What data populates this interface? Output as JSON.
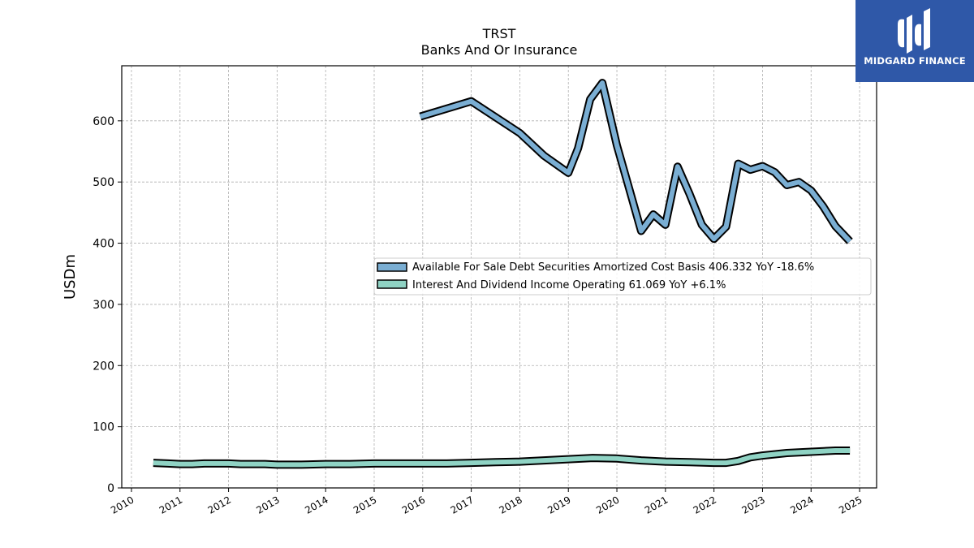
{
  "chart_data": {
    "type": "line",
    "title": "TRST",
    "subtitle": "Banks And Or Insurance",
    "ylabel": "USDm",
    "xlabel": "",
    "xlim": [
      2009.8,
      2025.35
    ],
    "ylim": [
      0,
      690
    ],
    "x_ticks": [
      "2010",
      "2011",
      "2012",
      "2013",
      "2014",
      "2015",
      "2016",
      "2017",
      "2018",
      "2019",
      "2020",
      "2021",
      "2022",
      "2023",
      "2024",
      "2025"
    ],
    "y_ticks": [
      "0",
      "100",
      "200",
      "300",
      "400",
      "500",
      "600"
    ],
    "grid": true,
    "legend_position": "center-right",
    "series": [
      {
        "name": "Available For Sale Debt Securities Amortized Cost Basis",
        "legend_label": "Available For Sale Debt Securities Amortized Cost Basis  406.332 YoY -18.6%",
        "color": "#7aaed3",
        "points": [
          [
            2015.95,
            607
          ],
          [
            2017.0,
            632
          ],
          [
            2018.0,
            580
          ],
          [
            2018.5,
            543
          ],
          [
            2019.0,
            515
          ],
          [
            2019.2,
            555
          ],
          [
            2019.45,
            635
          ],
          [
            2019.7,
            662
          ],
          [
            2020.0,
            560
          ],
          [
            2020.25,
            490
          ],
          [
            2020.5,
            420
          ],
          [
            2020.75,
            447
          ],
          [
            2021.0,
            430
          ],
          [
            2021.25,
            525
          ],
          [
            2021.5,
            480
          ],
          [
            2021.75,
            430
          ],
          [
            2022.0,
            407
          ],
          [
            2022.25,
            427
          ],
          [
            2022.5,
            530
          ],
          [
            2022.75,
            520
          ],
          [
            2023.0,
            526
          ],
          [
            2023.25,
            516
          ],
          [
            2023.5,
            495
          ],
          [
            2023.75,
            500
          ],
          [
            2024.0,
            486
          ],
          [
            2024.25,
            460
          ],
          [
            2024.5,
            428
          ],
          [
            2024.8,
            403
          ]
        ]
      },
      {
        "name": "Interest And Dividend Income Operating",
        "legend_label": "Interest And Dividend Income Operating  61.069 YoY +6.1%",
        "color": "#8fd3c4",
        "points": [
          [
            2010.45,
            41
          ],
          [
            2010.75,
            40
          ],
          [
            2011.0,
            39
          ],
          [
            2011.25,
            39
          ],
          [
            2011.5,
            40
          ],
          [
            2011.75,
            40
          ],
          [
            2012.0,
            40
          ],
          [
            2012.25,
            39
          ],
          [
            2012.5,
            39
          ],
          [
            2012.75,
            39
          ],
          [
            2013.0,
            38
          ],
          [
            2013.5,
            38
          ],
          [
            2014.0,
            39
          ],
          [
            2014.5,
            39
          ],
          [
            2015.0,
            40
          ],
          [
            2015.5,
            40
          ],
          [
            2016.0,
            40
          ],
          [
            2016.5,
            40
          ],
          [
            2017.0,
            41
          ],
          [
            2017.5,
            42
          ],
          [
            2018.0,
            43
          ],
          [
            2018.5,
            45
          ],
          [
            2019.0,
            47
          ],
          [
            2019.5,
            49
          ],
          [
            2020.0,
            48
          ],
          [
            2020.5,
            45
          ],
          [
            2021.0,
            43
          ],
          [
            2021.5,
            42
          ],
          [
            2022.0,
            41
          ],
          [
            2022.25,
            41
          ],
          [
            2022.5,
            44
          ],
          [
            2022.75,
            50
          ],
          [
            2023.0,
            53
          ],
          [
            2023.5,
            57
          ],
          [
            2024.0,
            59
          ],
          [
            2024.5,
            61
          ],
          [
            2024.8,
            61
          ]
        ]
      }
    ]
  },
  "logo": {
    "text": "MIDGARD FINANCE",
    "icon": "midgard-logo-icon"
  }
}
